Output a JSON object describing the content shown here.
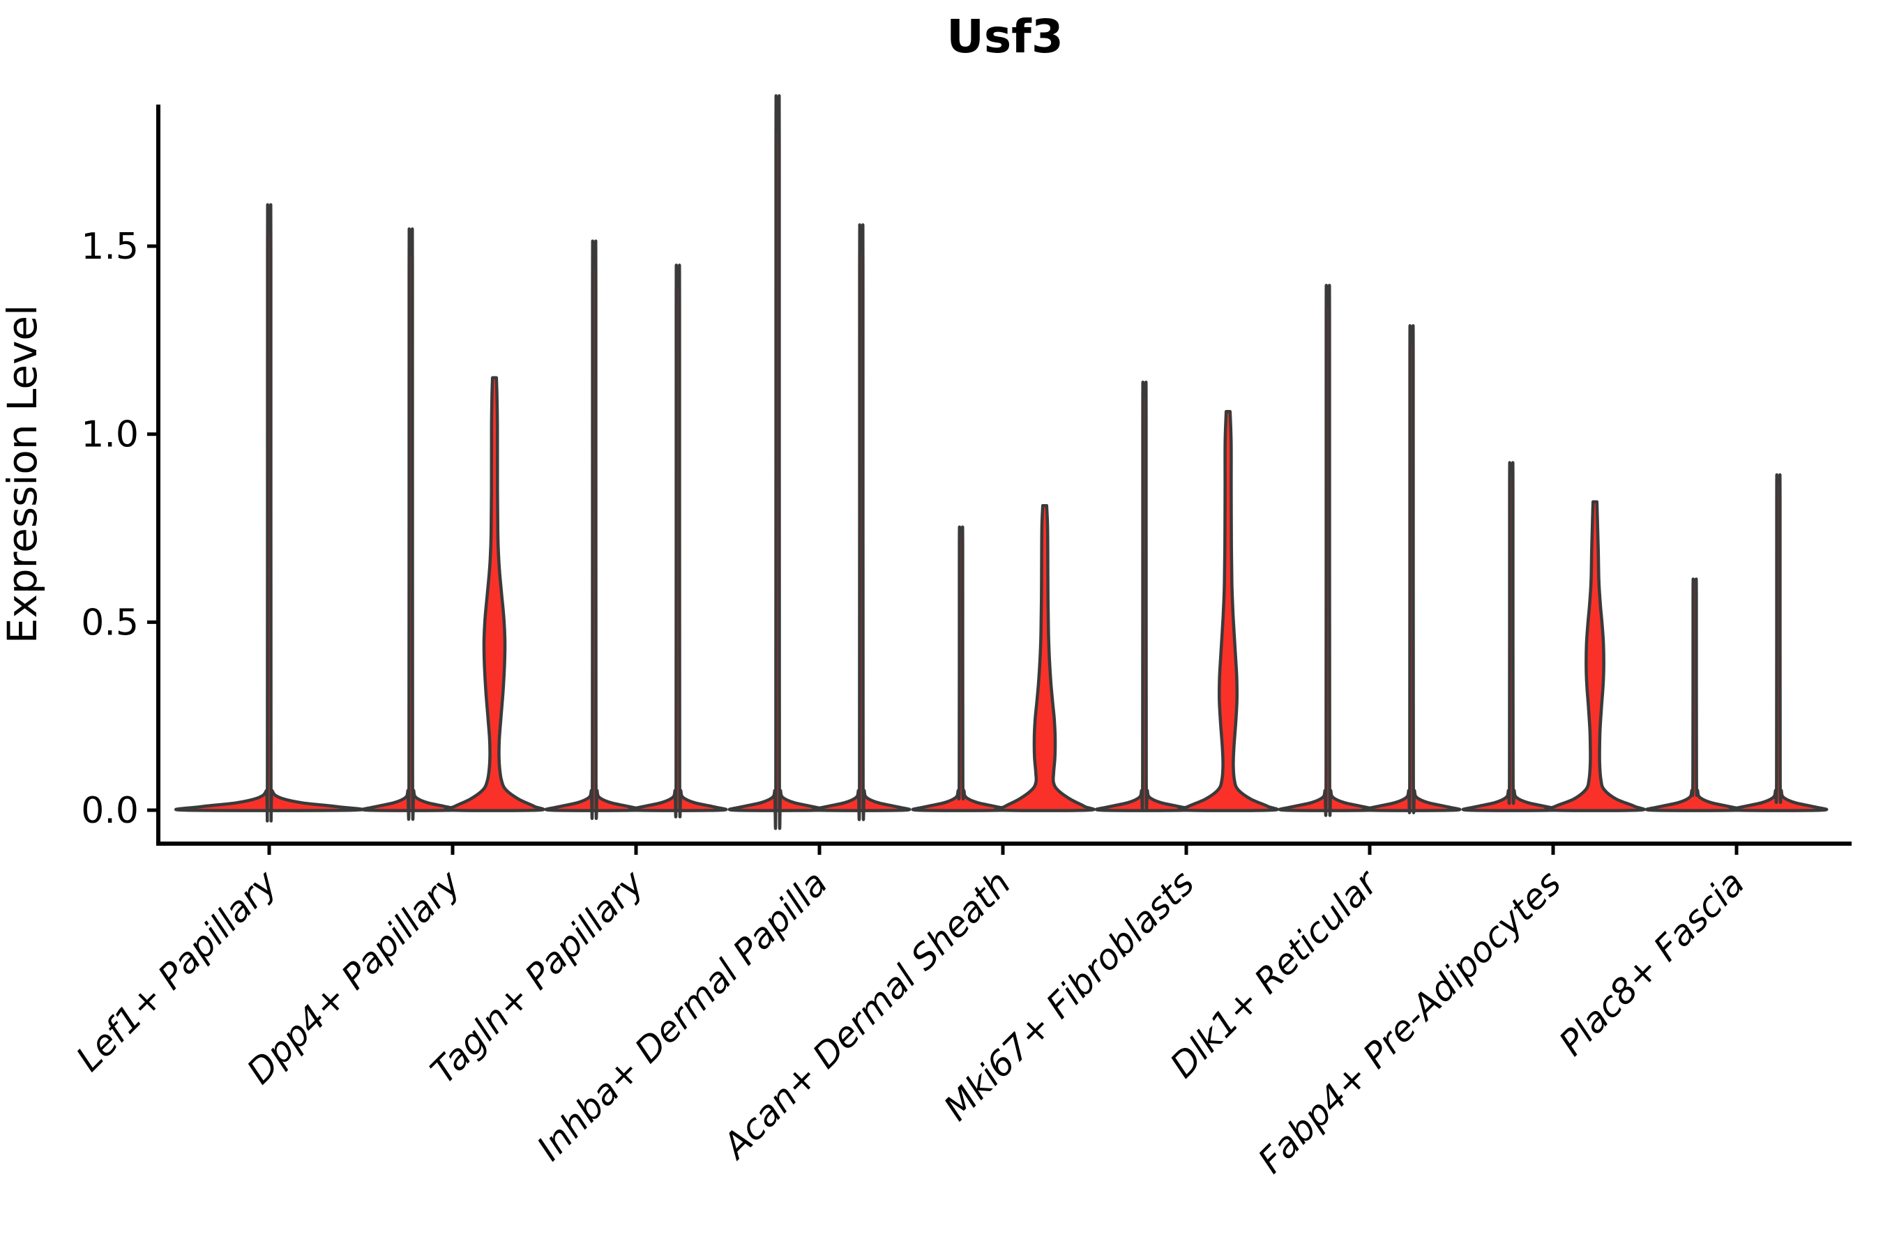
{
  "title": "Usf3",
  "y_axis": {
    "label": "Expression Level",
    "ticks": [
      {
        "label": "0.0",
        "value": 0.0
      },
      {
        "label": "0.5",
        "value": 0.5
      },
      {
        "label": "1.0",
        "value": 1.0
      },
      {
        "label": "1.5",
        "value": 1.5
      }
    ]
  },
  "x_axis": {
    "labels": [
      "Lef1+ Papillary",
      "Dpp4+ Papillary",
      "Tagln+ Papillary",
      "Inhba+ Dermal Papilla",
      "Acan+ Dermal Sheath",
      "Mki67+ Fibroblasts",
      "Dlk1+ Reticular",
      "Fabp4+ Pre-Adipocytes",
      "Plac8+ Fascia"
    ]
  },
  "chart_data": {
    "type": "violin",
    "title": "Usf3",
    "xlabel": "",
    "ylabel": "Expression Level",
    "ylim": [
      0,
      1.875
    ],
    "y_ticks": [
      0.0,
      0.5,
      1.0,
      1.5
    ],
    "grid": false,
    "legend": "none",
    "categories": [
      "Lef1+ Papillary",
      "Dpp4+ Papillary",
      "Tagln+ Papillary",
      "Inhba+ Dermal Papilla",
      "Acan+ Dermal Sheath",
      "Mki67+ Fibroblasts",
      "Dlk1+ Reticular",
      "Fabp4+ Pre-Adipocytes",
      "Plac8+ Fascia"
    ],
    "groups_per_category": 2,
    "fill_color": "#F93129",
    "outline_color": "#3A3A3A",
    "note": "Most cells express 0 (wide flat base at y=0); thin tails reach each violin max.",
    "violins": [
      {
        "category_index": 0,
        "side": "center",
        "max": 1.54,
        "shape": "spike",
        "base_halfwidth": 120
      },
      {
        "category_index": 1,
        "side": "left",
        "max": 1.48,
        "shape": "spike",
        "base_halfwidth": 62
      },
      {
        "category_index": 1,
        "side": "right",
        "max": 1.15,
        "shape": "profiled",
        "base_halfwidth": 62,
        "profile": [
          [
            0,
            62
          ],
          [
            0.01,
            57
          ],
          [
            0.03,
            34
          ],
          [
            0.055,
            16
          ],
          [
            0.08,
            10
          ],
          [
            0.11,
            7.5
          ],
          [
            0.145,
            6.5
          ],
          [
            0.19,
            7
          ],
          [
            0.25,
            9.5
          ],
          [
            0.32,
            12.5
          ],
          [
            0.39,
            14.5
          ],
          [
            0.45,
            15
          ],
          [
            0.51,
            13.5
          ],
          [
            0.57,
            10.5
          ],
          [
            0.63,
            7.5
          ],
          [
            0.68,
            5.8
          ],
          [
            0.74,
            4.8
          ],
          [
            0.85,
            4.3
          ],
          [
            1.02,
            4.2
          ],
          [
            1.1,
            3.6
          ],
          [
            1.15,
            2.8
          ]
        ]
      },
      {
        "category_index": 2,
        "side": "left",
        "max": 1.45,
        "shape": "spike",
        "base_halfwidth": 62
      },
      {
        "category_index": 2,
        "side": "right",
        "max": 1.39,
        "shape": "spike",
        "base_halfwidth": 62
      },
      {
        "category_index": 3,
        "side": "left",
        "max": 1.81,
        "shape": "spike",
        "base_halfwidth": 62
      },
      {
        "category_index": 3,
        "side": "right",
        "max": 1.49,
        "shape": "spike",
        "base_halfwidth": 62
      },
      {
        "category_index": 4,
        "side": "left",
        "max": 0.74,
        "shape": "spike",
        "base_halfwidth": 62
      },
      {
        "category_index": 4,
        "side": "right",
        "max": 0.81,
        "shape": "profiled",
        "base_halfwidth": 62,
        "profile": [
          [
            0,
            62
          ],
          [
            0.01,
            57
          ],
          [
            0.03,
            36
          ],
          [
            0.055,
            18
          ],
          [
            0.075,
            12.5
          ],
          [
            0.1,
            12.8
          ],
          [
            0.14,
            14.6
          ],
          [
            0.19,
            15
          ],
          [
            0.24,
            13.8
          ],
          [
            0.29,
            11.2
          ],
          [
            0.34,
            8.8
          ],
          [
            0.4,
            6.8
          ],
          [
            0.47,
            5.4
          ],
          [
            0.56,
            4.7
          ],
          [
            0.68,
            4.4
          ],
          [
            0.76,
            4.0
          ],
          [
            0.81,
            2.8
          ]
        ]
      },
      {
        "category_index": 5,
        "side": "left",
        "max": 1.1,
        "shape": "spike",
        "base_halfwidth": 62
      },
      {
        "category_index": 5,
        "side": "right",
        "max": 1.06,
        "shape": "profiled",
        "base_halfwidth": 62,
        "profile": [
          [
            0,
            62
          ],
          [
            0.01,
            57
          ],
          [
            0.03,
            32
          ],
          [
            0.055,
            14
          ],
          [
            0.08,
            9
          ],
          [
            0.12,
            7.4
          ],
          [
            0.17,
            8.4
          ],
          [
            0.23,
            10.8
          ],
          [
            0.29,
            12.6
          ],
          [
            0.35,
            12.4
          ],
          [
            0.41,
            10.6
          ],
          [
            0.47,
            8.6
          ],
          [
            0.53,
            6.8
          ],
          [
            0.6,
            5.4
          ],
          [
            0.7,
            4.7
          ],
          [
            0.85,
            4.4
          ],
          [
            0.98,
            4.3
          ],
          [
            1.06,
            2.8
          ]
        ]
      },
      {
        "category_index": 6,
        "side": "left",
        "max": 1.34,
        "shape": "spike",
        "base_halfwidth": 62
      },
      {
        "category_index": 6,
        "side": "right",
        "max": 1.24,
        "shape": "spike",
        "base_halfwidth": 62
      },
      {
        "category_index": 7,
        "side": "left",
        "max": 0.9,
        "shape": "spike",
        "base_halfwidth": 62
      },
      {
        "category_index": 7,
        "side": "right",
        "max": 0.82,
        "shape": "profiled",
        "base_halfwidth": 62,
        "profile": [
          [
            0,
            62
          ],
          [
            0.01,
            57
          ],
          [
            0.03,
            30
          ],
          [
            0.055,
            13
          ],
          [
            0.08,
            8.6
          ],
          [
            0.12,
            6.8
          ],
          [
            0.16,
            6.6
          ],
          [
            0.21,
            7.2
          ],
          [
            0.27,
            9.2
          ],
          [
            0.33,
            11.6
          ],
          [
            0.38,
            12.6
          ],
          [
            0.44,
            12.2
          ],
          [
            0.5,
            10
          ],
          [
            0.55,
            7.6
          ],
          [
            0.61,
            5.6
          ],
          [
            0.7,
            4.6
          ],
          [
            0.82,
            2.8
          ]
        ]
      },
      {
        "category_index": 8,
        "side": "left",
        "max": 0.61,
        "shape": "spike",
        "base_halfwidth": 62
      },
      {
        "category_index": 8,
        "side": "right",
        "max": 0.87,
        "shape": "spike",
        "base_halfwidth": 62
      }
    ]
  }
}
